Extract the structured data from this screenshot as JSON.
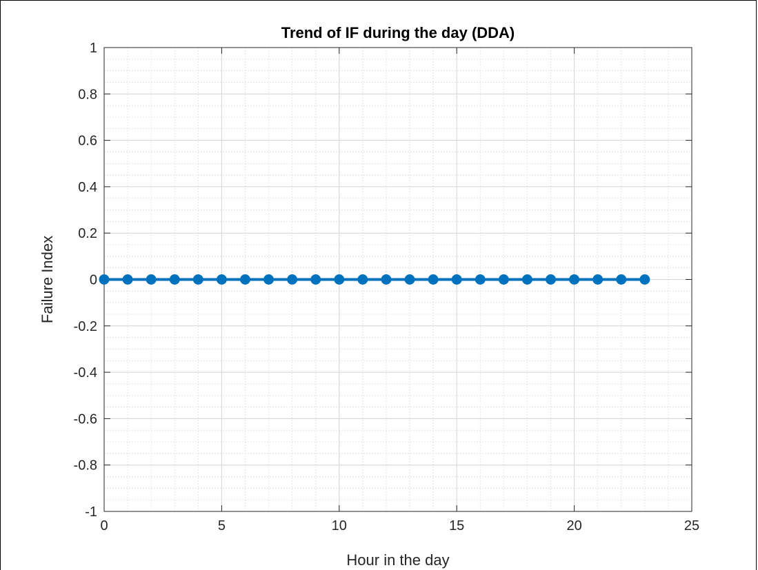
{
  "chart_data": {
    "type": "line",
    "title": "Trend of IF during the day (DDA)",
    "xlabel": "Hour in the day",
    "ylabel": "Failure Index",
    "xlim": [
      0,
      25
    ],
    "ylim": [
      -1,
      1
    ],
    "xticks": [
      "0",
      "5",
      "10",
      "15",
      "20",
      "25"
    ],
    "yticks": [
      "-1",
      "-0.8",
      "-0.6",
      "-0.4",
      "-0.2",
      "0",
      "0.2",
      "0.4",
      "0.6",
      "0.8",
      "1"
    ],
    "grid": true,
    "minor_grid": true,
    "line_color": "#0072BD",
    "marker": "filled-circle",
    "series": [
      {
        "x": [
          0,
          1,
          2,
          3,
          4,
          5,
          6,
          7,
          8,
          9,
          10,
          11,
          12,
          13,
          14,
          15,
          16,
          17,
          18,
          19,
          20,
          21,
          22,
          23
        ],
        "y": [
          0,
          0,
          0,
          0,
          0,
          0,
          0,
          0,
          0,
          0,
          0,
          0,
          0,
          0,
          0,
          0,
          0,
          0,
          0,
          0,
          0,
          0,
          0,
          0
        ]
      }
    ]
  }
}
